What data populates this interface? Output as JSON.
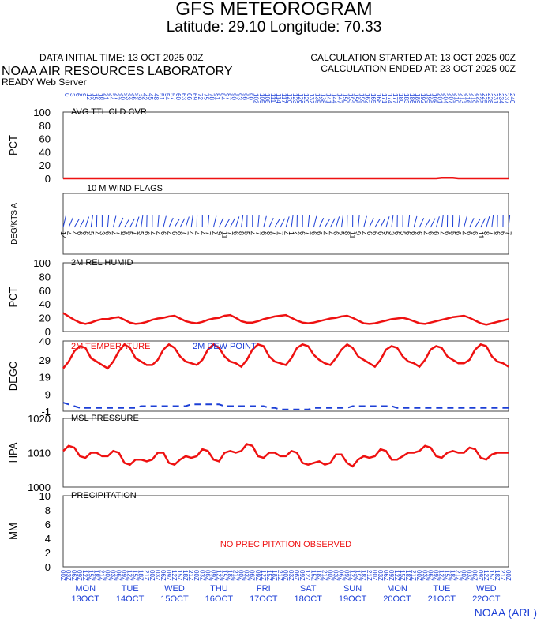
{
  "header": {
    "title": "GFS METEOROGRAM",
    "subtitle": "Latitude: 29.10 Longitude:  70.33",
    "init_time": "DATA INITIAL TIME: 13 OCT 2025 00Z",
    "calc_started": "CALCULATION STARTED AT: 13 OCT 2025 00Z",
    "calc_ended": "CALCULATION ENDED AT: 23 OCT 2025 00Z",
    "lab": "NOAA AIR RESOURCES LABORATORY",
    "server": "READY Web Server",
    "credit": "NOAA (ARL)"
  },
  "colors": {
    "series": "#ee1111",
    "dewpoint": "#1c3fd6",
    "axis_text": "#1c3fd6",
    "frame": "#444444"
  },
  "top_axis": {
    "labels": [
      "0",
      "3",
      "6",
      "9",
      "12",
      "15",
      "18",
      "21",
      "24",
      "27",
      "30",
      "33",
      "36",
      "39",
      "42",
      "45",
      "48",
      "51",
      "54",
      "57",
      "60",
      "63",
      "66",
      "69",
      "72",
      "75",
      "78",
      "81",
      "84",
      "87",
      "90",
      "93",
      "96",
      "99",
      "102",
      "105",
      "108",
      "111",
      "114",
      "117",
      "120",
      "123",
      "126",
      "129",
      "132",
      "135",
      "138",
      "141",
      "144",
      "147",
      "150",
      "153",
      "156",
      "159",
      "162",
      "165",
      "168",
      "171",
      "174",
      "177",
      "180",
      "183",
      "186",
      "189",
      "192",
      "195",
      "198",
      "201",
      "204",
      "207",
      "210",
      "213",
      "216",
      "219",
      "222",
      "225",
      "228",
      "231",
      "234",
      "237",
      "240"
    ]
  },
  "bottom_axis": {
    "hours": [
      "00Z",
      "03Z",
      "06Z",
      "09Z",
      "12Z",
      "15Z",
      "18Z",
      "21Z"
    ],
    "days": [
      {
        "dow": "MON",
        "date": "13OCT"
      },
      {
        "dow": "TUE",
        "date": "14OCT"
      },
      {
        "dow": "WED",
        "date": "15OCT"
      },
      {
        "dow": "THU",
        "date": "16OCT"
      },
      {
        "dow": "FRI",
        "date": "17OCT"
      },
      {
        "dow": "SAT",
        "date": "18OCT"
      },
      {
        "dow": "SUN",
        "date": "19OCT"
      },
      {
        "dow": "MON",
        "date": "20OCT"
      },
      {
        "dow": "TUE",
        "date": "21OCT"
      },
      {
        "dow": "WED",
        "date": "22OCT"
      }
    ]
  },
  "chart_data": [
    {
      "type": "line",
      "title": "AVG TTL CLD CVR",
      "ylabel": "PCT",
      "ylim": [
        0,
        100
      ],
      "yticks": [
        "0",
        "20",
        "40",
        "60",
        "80",
        "100"
      ],
      "x": "forecast hours 0-240 step 3",
      "series": [
        {
          "values": [
            0,
            0,
            0,
            0,
            0,
            0,
            0,
            0,
            0,
            0,
            0,
            0,
            0,
            0,
            0,
            0,
            0,
            0,
            0,
            0,
            0,
            0,
            0,
            0,
            0,
            0,
            0,
            0,
            0,
            0,
            0,
            0,
            0,
            0,
            0,
            0,
            0,
            0,
            0,
            0,
            0,
            0,
            0,
            0,
            0,
            0,
            0,
            0,
            0,
            0,
            0,
            0,
            0,
            0,
            0,
            0,
            0,
            0,
            0,
            0,
            0,
            0,
            0,
            0,
            0,
            0,
            0,
            0,
            1,
            1,
            1,
            0,
            0,
            0,
            0,
            0,
            0,
            0,
            0,
            0,
            0
          ]
        }
      ]
    },
    {
      "type": "wind_barbs",
      "title": "10 M  WIND FLAGS",
      "ylabel": "DEG/KTS  A",
      "speed_labels": [
        "14",
        "4",
        "4",
        "6",
        "6",
        "5",
        "4",
        "3",
        "6",
        "4",
        "7",
        "6",
        "5",
        "7",
        "5",
        "6",
        "4",
        "4",
        "6",
        "4",
        "6",
        "8",
        "7",
        "4",
        "4",
        "4",
        "7",
        "4",
        "9",
        "11",
        "7",
        "6",
        "8",
        "5",
        "4",
        "7",
        "6",
        "8",
        "7",
        "7",
        "4",
        "1",
        "2",
        "6",
        "7",
        "6",
        "6",
        "4",
        "4",
        "6",
        "5",
        "8",
        "11",
        "9",
        "4",
        "6",
        "6",
        "6",
        "5",
        "3",
        "6",
        "5",
        "6",
        "6",
        "6",
        "4",
        "6",
        "6",
        "4",
        "6",
        "5",
        "6",
        "4",
        "6",
        "6",
        "11",
        "8",
        "7",
        "6",
        "6",
        "7"
      ]
    },
    {
      "type": "line",
      "title": "2M REL HUMID",
      "ylabel": "PCT",
      "ylim": [
        0,
        100
      ],
      "yticks": [
        "0",
        "20",
        "40",
        "60",
        "80",
        "100"
      ],
      "series": [
        {
          "values": [
            27,
            22,
            17,
            13,
            11,
            13,
            16,
            18,
            18,
            20,
            21,
            17,
            13,
            11,
            12,
            14,
            17,
            19,
            20,
            22,
            23,
            19,
            15,
            13,
            12,
            14,
            17,
            19,
            20,
            23,
            24,
            20,
            15,
            13,
            13,
            15,
            18,
            20,
            22,
            23,
            24,
            20,
            16,
            13,
            12,
            13,
            15,
            17,
            19,
            20,
            22,
            23,
            20,
            16,
            12,
            11,
            12,
            14,
            16,
            18,
            19,
            20,
            18,
            15,
            12,
            11,
            13,
            15,
            17,
            19,
            21,
            22,
            23,
            20,
            16,
            12,
            10,
            12,
            14,
            16,
            18
          ]
        }
      ]
    },
    {
      "type": "line",
      "title": "2M TEMPERATURE",
      "ylabel": "DEGC",
      "ylim": [
        -1,
        40
      ],
      "yticks": [
        "-1",
        "9",
        "19",
        "29",
        "40"
      ],
      "series": [
        {
          "name": "2M TEMPERATURE",
          "values": [
            24,
            28,
            34,
            37,
            36,
            30,
            28,
            26,
            24,
            28,
            34,
            38,
            36,
            30,
            28,
            26,
            26,
            29,
            35,
            38,
            36,
            31,
            28,
            27,
            26,
            29,
            35,
            38,
            36,
            31,
            28,
            27,
            25,
            29,
            35,
            38,
            37,
            31,
            28,
            27,
            26,
            30,
            36,
            38,
            37,
            32,
            29,
            27,
            26,
            30,
            35,
            38,
            36,
            31,
            29,
            27,
            25,
            29,
            35,
            37,
            36,
            31,
            28,
            27,
            25,
            29,
            35,
            37,
            36,
            31,
            29,
            27,
            27,
            29,
            35,
            38,
            37,
            31,
            28,
            27,
            25
          ]
        },
        {
          "name": "2M  DEW POINT",
          "values": [
            4,
            3,
            2,
            1,
            1,
            1,
            1,
            1,
            1,
            1,
            1,
            1,
            1,
            1,
            2,
            2,
            2,
            2,
            2,
            2,
            2,
            2,
            2,
            3,
            3,
            3,
            3,
            3,
            3,
            2,
            2,
            2,
            2,
            2,
            2,
            2,
            2,
            1,
            1,
            0,
            0,
            0,
            0,
            0,
            0,
            1,
            1,
            1,
            1,
            1,
            1,
            1,
            2,
            2,
            2,
            2,
            2,
            2,
            2,
            2,
            1,
            1,
            1,
            1,
            1,
            1,
            1,
            1,
            1,
            1,
            1,
            1,
            1,
            1,
            1,
            1,
            1,
            1,
            1,
            1,
            1
          ]
        }
      ]
    },
    {
      "type": "line",
      "title": "MSL PRESSURE",
      "ylabel": "HPA",
      "ylim": [
        1000,
        1020
      ],
      "yticks": [
        "1000",
        "1010",
        "1020"
      ],
      "series": [
        {
          "values": [
            1010.5,
            1012,
            1011.5,
            1009,
            1008.5,
            1010,
            1010,
            1009,
            1009,
            1010.5,
            1010,
            1007,
            1006.5,
            1008,
            1008,
            1007.5,
            1008,
            1010,
            1010,
            1007,
            1006.5,
            1008,
            1009,
            1008.5,
            1009,
            1011,
            1010.5,
            1008,
            1007.5,
            1010,
            1010.5,
            1010,
            1010.5,
            1012.5,
            1012,
            1009,
            1008.5,
            1010,
            1010,
            1009,
            1009,
            1010.5,
            1010,
            1007,
            1006.5,
            1007,
            1007.5,
            1006.5,
            1007,
            1009.5,
            1009.5,
            1007,
            1006,
            1008,
            1009,
            1008.5,
            1009,
            1011,
            1010.5,
            1008,
            1008,
            1009,
            1010,
            1010,
            1010.5,
            1012,
            1011.5,
            1009,
            1008.5,
            1010,
            1010.5,
            1010,
            1010,
            1011.5,
            1011,
            1008.5,
            1008,
            1009.5,
            1010,
            1010,
            1010
          ]
        }
      ]
    },
    {
      "type": "line",
      "title": "PRECIPITATION",
      "ylabel": "MM",
      "ylim": [
        0,
        10
      ],
      "yticks": [
        "0",
        "2",
        "4",
        "6",
        "8",
        "10"
      ],
      "annotation": "NO PRECIPITATION OBSERVED",
      "series": [
        {
          "values": []
        }
      ]
    }
  ]
}
